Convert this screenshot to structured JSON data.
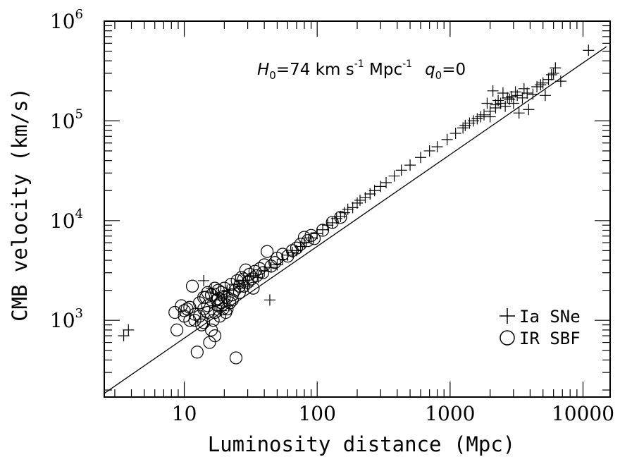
{
  "chart_data": {
    "type": "scatter",
    "title": "",
    "xlabel": "Luminosity distance (Mpc)",
    "ylabel": "CMB velocity (km/s)",
    "xscale": "log",
    "yscale": "log",
    "xlim": [
      2.5,
      16000
    ],
    "ylim": [
      170,
      1000000
    ],
    "x_ticks": [
      {
        "value": 10,
        "label": "10"
      },
      {
        "value": 100,
        "label": "100"
      },
      {
        "value": 1000,
        "label": "1000"
      },
      {
        "value": 10000,
        "label": "10000"
      }
    ],
    "y_ticks": [
      {
        "value": 1000,
        "base": "10",
        "exp": "3"
      },
      {
        "value": 10000,
        "base": "10",
        "exp": "4"
      },
      {
        "value": 100000,
        "base": "10",
        "exp": "5"
      },
      {
        "value": 1000000,
        "base": "10",
        "exp": "6"
      }
    ],
    "annotation": {
      "H": "H",
      "H_sub": "0",
      "H_value": "=74  km s",
      "s_exp": "-1",
      "mpc": " Mpc",
      "mpc_exp": "-1",
      "q": "q",
      "q_sub": "0",
      "q_value": "=0"
    },
    "fit_line": {
      "x": [
        2.5,
        15000
      ],
      "y": [
        185,
        555000
      ]
    },
    "legend": {
      "position": "bottom-right",
      "entries": [
        {
          "marker": "plus",
          "label": "Ia SNe"
        },
        {
          "marker": "circle",
          "label": "IR SBF"
        }
      ]
    },
    "series": [
      {
        "name": "Ia SNe",
        "marker": "plus",
        "points": [
          [
            3.5,
            700
          ],
          [
            3.8,
            800
          ],
          [
            14,
            2500
          ],
          [
            16,
            2100
          ],
          [
            17,
            1400
          ],
          [
            18,
            1800
          ],
          [
            19,
            1250
          ],
          [
            20,
            1600
          ],
          [
            21,
            2000
          ],
          [
            22,
            1400
          ],
          [
            24,
            2300
          ],
          [
            26,
            2100
          ],
          [
            28,
            2500
          ],
          [
            30,
            2200
          ],
          [
            33,
            2800
          ],
          [
            36,
            2700
          ],
          [
            40,
            3100
          ],
          [
            44,
            1600
          ],
          [
            45,
            3400
          ],
          [
            50,
            3600
          ],
          [
            55,
            4100
          ],
          [
            60,
            4500
          ],
          [
            65,
            4800
          ],
          [
            70,
            5000
          ],
          [
            75,
            5500
          ],
          [
            80,
            6000
          ],
          [
            90,
            6700
          ],
          [
            100,
            7400
          ],
          [
            110,
            8100
          ],
          [
            120,
            9000
          ],
          [
            130,
            9500
          ],
          [
            140,
            10500
          ],
          [
            150,
            11000
          ],
          [
            160,
            12000
          ],
          [
            170,
            13000
          ],
          [
            185,
            13500
          ],
          [
            200,
            15000
          ],
          [
            210,
            16000
          ],
          [
            230,
            17000
          ],
          [
            250,
            18500
          ],
          [
            270,
            20000
          ],
          [
            300,
            22000
          ],
          [
            330,
            24000
          ],
          [
            380,
            28000
          ],
          [
            430,
            32000
          ],
          [
            500,
            36000
          ],
          [
            600,
            43000
          ],
          [
            700,
            50000
          ],
          [
            800,
            55000
          ],
          [
            950,
            65000
          ],
          [
            1100,
            75000
          ],
          [
            1250,
            85000
          ],
          [
            1400,
            95000
          ],
          [
            1600,
            105000
          ],
          [
            1800,
            115000
          ],
          [
            2000,
            125000
          ],
          [
            2200,
            135000
          ],
          [
            2100,
            200000
          ],
          [
            2400,
            150000
          ],
          [
            2600,
            140000
          ],
          [
            2800,
            165000
          ],
          [
            3000,
            150000
          ],
          [
            3200,
            180000
          ],
          [
            3500,
            170000
          ],
          [
            3800,
            190000
          ],
          [
            3300,
            120000
          ],
          [
            3900,
            130000
          ],
          [
            4500,
            220000
          ],
          [
            5000,
            240000
          ],
          [
            5500,
            260000
          ],
          [
            6000,
            300000
          ],
          [
            5200,
            180000
          ],
          [
            6200,
            340000
          ],
          [
            6800,
            250000
          ],
          [
            11000,
            510000
          ],
          [
            2500,
            190000
          ],
          [
            1900,
            150000
          ],
          [
            2700,
            170000
          ],
          [
            3100,
            195000
          ],
          [
            4800,
            230000
          ],
          [
            1700,
            110000
          ],
          [
            1300,
            90000
          ],
          [
            1500,
            100000
          ],
          [
            2300,
            160000
          ],
          [
            2900,
            175000
          ],
          [
            3600,
            210000
          ],
          [
            4200,
            185000
          ],
          [
            5800,
            290000
          ],
          [
            2000,
            110000
          ],
          [
            2200,
            145000
          ]
        ]
      },
      {
        "name": "IR SBF",
        "marker": "circle",
        "points": [
          [
            8.5,
            1200
          ],
          [
            8.8,
            800
          ],
          [
            9.5,
            1400
          ],
          [
            10,
            1100
          ],
          [
            10.5,
            1300
          ],
          [
            11,
            1000
          ],
          [
            11.5,
            2200
          ],
          [
            12,
            1150
          ],
          [
            12.5,
            480
          ],
          [
            13,
            1500
          ],
          [
            13.5,
            900
          ],
          [
            14,
            1300
          ],
          [
            14.5,
            1700
          ],
          [
            15,
            1200
          ],
          [
            15.5,
            600
          ],
          [
            16,
            1800
          ],
          [
            16.5,
            1000
          ],
          [
            17,
            700
          ],
          [
            17.5,
            1600
          ],
          [
            18,
            1400
          ],
          [
            18.5,
            1100
          ],
          [
            19,
            1900
          ],
          [
            19.5,
            1300
          ],
          [
            20,
            2100
          ],
          [
            20.5,
            1200
          ],
          [
            21,
            1700
          ],
          [
            22,
            1500
          ],
          [
            22.5,
            2300
          ],
          [
            23,
            1800
          ],
          [
            24,
            2000
          ],
          [
            24.5,
            420
          ],
          [
            25,
            2500
          ],
          [
            26,
            1900
          ],
          [
            27,
            2700
          ],
          [
            28,
            2200
          ],
          [
            29,
            3200
          ],
          [
            30,
            2400
          ],
          [
            32,
            2600
          ],
          [
            33,
            2100
          ],
          [
            35,
            2800
          ],
          [
            37,
            3300
          ],
          [
            39,
            3000
          ],
          [
            40,
            3600
          ],
          [
            42,
            4900
          ],
          [
            45,
            3500
          ],
          [
            48,
            3800
          ],
          [
            50,
            4200
          ],
          [
            55,
            4600
          ],
          [
            60,
            4400
          ],
          [
            65,
            5000
          ],
          [
            70,
            5300
          ],
          [
            75,
            5800
          ],
          [
            80,
            6800
          ],
          [
            85,
            6300
          ],
          [
            90,
            7100
          ],
          [
            95,
            6600
          ],
          [
            110,
            8000
          ],
          [
            130,
            9600
          ],
          [
            150,
            10800
          ],
          [
            13,
            1100
          ],
          [
            14,
            950
          ],
          [
            15,
            1400
          ],
          [
            16,
            800
          ],
          [
            17,
            1200
          ],
          [
            18,
            2000
          ],
          [
            19,
            1500
          ],
          [
            20,
            1700
          ],
          [
            21,
            1300
          ],
          [
            23,
            1600
          ],
          [
            26,
            2200
          ],
          [
            28,
            2600
          ],
          [
            31,
            2900
          ],
          [
            34,
            3100
          ],
          [
            10,
            1250
          ],
          [
            11,
            1350
          ],
          [
            12,
            1000
          ],
          [
            14,
            1700
          ],
          [
            15,
            1900
          ],
          [
            17,
            2100
          ],
          [
            18,
            1650
          ]
        ]
      }
    ]
  }
}
